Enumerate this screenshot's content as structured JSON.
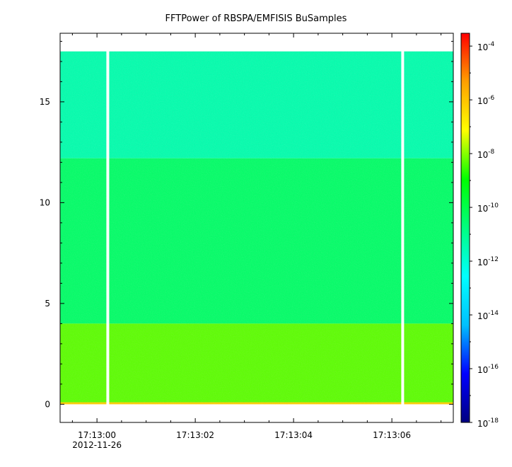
{
  "chart_data": {
    "type": "heatmap",
    "title": "FFTPower of RBSPA/EMFISIS  BuSamples",
    "xlabel": "",
    "ylabel": "",
    "x_ticks": [
      {
        "label": "17:13:00",
        "sublabel": "2012-11-26",
        "t": 0
      },
      {
        "label": "17:13:02",
        "sublabel": "",
        "t": 2
      },
      {
        "label": "17:13:04",
        "sublabel": "",
        "t": 4
      },
      {
        "label": "17:13:06",
        "sublabel": "",
        "t": 6
      }
    ],
    "xlim_seconds_after_17_13_00": [
      -0.75,
      7.25
    ],
    "y_ticks": [
      0,
      5,
      10,
      15
    ],
    "ylim": [
      -0.9,
      18.4
    ],
    "data_y_range": [
      0,
      17.5
    ],
    "data_gaps_seconds_after_17_13_00": [
      0.22,
      6.22
    ],
    "colorbar": {
      "scale": "log",
      "range": [
        1e-18,
        0.0003
      ],
      "ticks": [
        {
          "base": "10",
          "exp": "-4",
          "value": -4
        },
        {
          "base": "10",
          "exp": "-6",
          "value": -6
        },
        {
          "base": "10",
          "exp": "-8",
          "value": -8
        },
        {
          "base": "10",
          "exp": "-10",
          "value": -10
        },
        {
          "base": "10",
          "exp": "-12",
          "value": -12
        },
        {
          "base": "10",
          "exp": "-14",
          "value": -14
        },
        {
          "base": "10",
          "exp": "-16",
          "value": -16
        },
        {
          "base": "10",
          "exp": "-18",
          "value": -18
        }
      ],
      "colormap": [
        "#000080",
        "#0000ff",
        "#00c0ff",
        "#00ffff",
        "#00ff80",
        "#00ff00",
        "#ffff00",
        "#ffa000",
        "#ff0000"
      ]
    },
    "bands": [
      {
        "y_from": 12.2,
        "y_to": 17.5,
        "log_power": -11.4
      },
      {
        "y_from": 4.0,
        "y_to": 12.2,
        "log_power": -10.4
      },
      {
        "y_from": 0.1,
        "y_to": 4.0,
        "log_power": -8.3
      },
      {
        "y_from": 0.0,
        "y_to": 0.1,
        "log_power": -6.2
      }
    ]
  }
}
